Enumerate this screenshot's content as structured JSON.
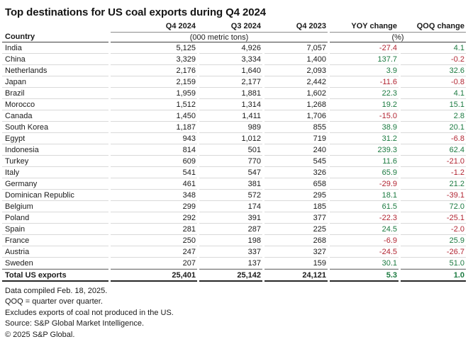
{
  "colors": {
    "positive_change": "#1b7a40",
    "negative_change": "#b22532",
    "rule_light": "#d9d9d9",
    "rule_dark": "#404040"
  },
  "chart_data": {
    "type": "table",
    "title": "Top destinations for US coal exports during Q4 2024",
    "columns": [
      "Country",
      "Q4 2024",
      "Q3 2024",
      "Q4 2023",
      "YOY change",
      "QOQ change"
    ],
    "units": {
      "tons_label": "(000 metric tons)",
      "pct_label": "(%)"
    },
    "rows": [
      [
        "India",
        5125,
        4926,
        7057,
        -27.4,
        4.1
      ],
      [
        "China",
        3329,
        3334,
        1400,
        137.7,
        -0.2
      ],
      [
        "Netherlands",
        2176,
        1640,
        2093,
        3.9,
        32.6
      ],
      [
        "Japan",
        2159,
        2177,
        2442,
        -11.6,
        -0.8
      ],
      [
        "Brazil",
        1959,
        1881,
        1602,
        22.3,
        4.1
      ],
      [
        "Morocco",
        1512,
        1314,
        1268,
        19.2,
        15.1
      ],
      [
        "Canada",
        1450,
        1411,
        1706,
        -15.0,
        2.8
      ],
      [
        "South Korea",
        1187,
        989,
        855,
        38.9,
        20.1
      ],
      [
        "Egypt",
        943,
        1012,
        719,
        31.2,
        -6.8
      ],
      [
        "Indonesia",
        814,
        501,
        240,
        239.3,
        62.4
      ],
      [
        "Turkey",
        609,
        770,
        545,
        11.6,
        -21.0
      ],
      [
        "Italy",
        541,
        547,
        326,
        65.9,
        -1.2
      ],
      [
        "Germany",
        461,
        381,
        658,
        -29.9,
        21.2
      ],
      [
        "Dominican Republic",
        348,
        572,
        295,
        18.1,
        -39.1
      ],
      [
        "Belgium",
        299,
        174,
        185,
        61.5,
        72.0
      ],
      [
        "Poland",
        292,
        391,
        377,
        -22.3,
        -25.1
      ],
      [
        "Spain",
        281,
        287,
        225,
        24.5,
        -2.0
      ],
      [
        "France",
        250,
        198,
        268,
        -6.9,
        25.9
      ],
      [
        "Austria",
        247,
        337,
        327,
        -24.5,
        -26.7
      ],
      [
        "Sweden",
        207,
        137,
        159,
        30.1,
        51.0
      ]
    ],
    "total_row": [
      "Total US exports",
      25401,
      25142,
      24121,
      5.3,
      1.0
    ],
    "footnotes": [
      "Data compiled Feb. 18, 2025.",
      "QOQ = quarter over quarter.",
      "Excludes exports of coal not produced in the US.",
      "Source: S&P Global Market Intelligence.",
      "© 2025 S&P Global."
    ]
  }
}
